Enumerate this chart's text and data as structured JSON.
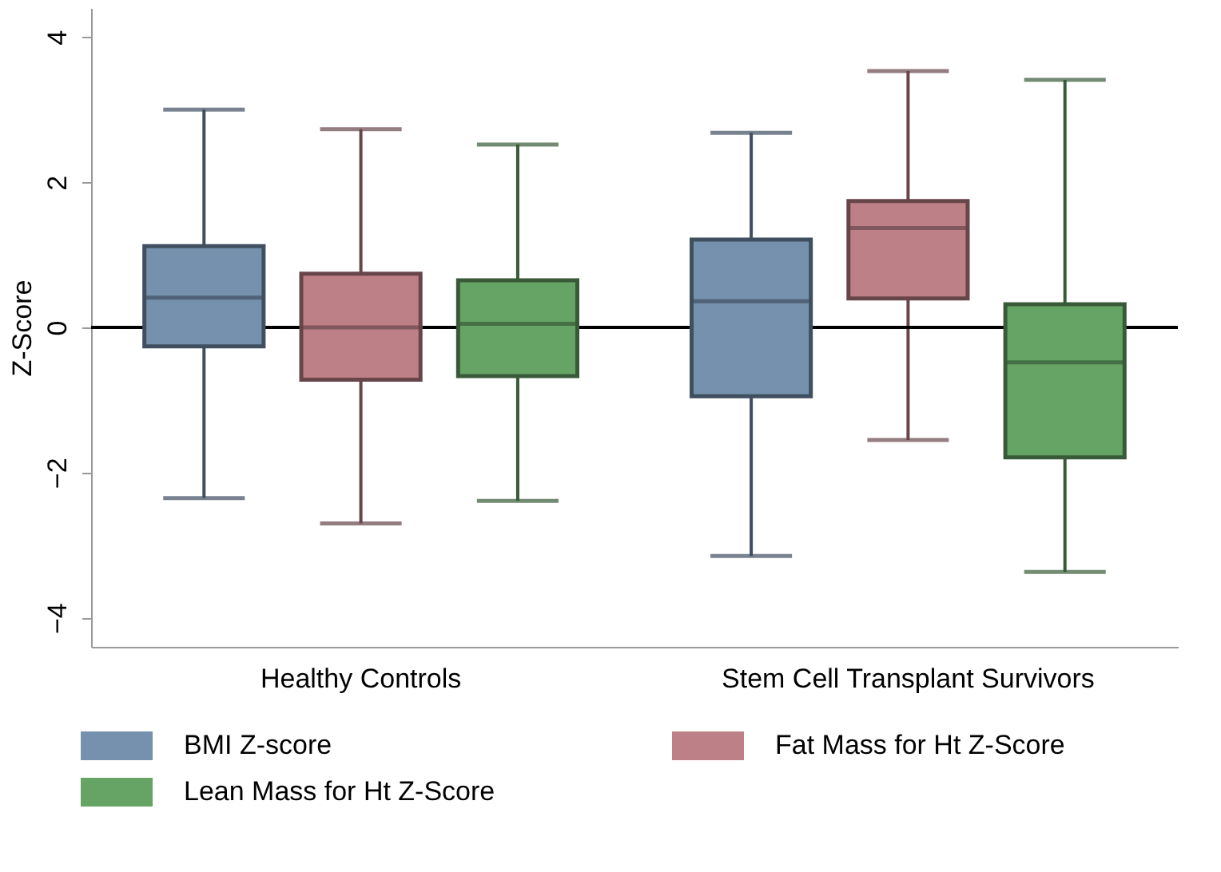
{
  "chart_data": {
    "type": "box",
    "ylabel": "Z-Score",
    "categories": [
      "Healthy Controls",
      "Stem Cell Transplant Survivors"
    ],
    "series": [
      {
        "name": "BMI Z-score",
        "color": "#7591ad",
        "boxes": [
          {
            "low": -2.35,
            "q1": -0.26,
            "median": 0.41,
            "q3": 1.12,
            "high": 3.0
          },
          {
            "low": -3.15,
            "q1": -0.95,
            "median": 0.36,
            "q3": 1.21,
            "high": 2.68
          }
        ]
      },
      {
        "name": "Fat Mass for Ht Z-Score",
        "color": "#bd8087",
        "boxes": [
          {
            "low": -2.7,
            "q1": -0.72,
            "median": 0.0,
            "q3": 0.74,
            "high": 2.73
          },
          {
            "low": -1.55,
            "q1": 0.4,
            "median": 1.37,
            "q3": 1.74,
            "high": 3.53
          }
        ]
      },
      {
        "name": "Lean Mass for Ht Z-Score",
        "color": "#66a466",
        "boxes": [
          {
            "low": -2.39,
            "q1": -0.67,
            "median": 0.05,
            "q3": 0.65,
            "high": 2.52
          },
          {
            "low": -3.37,
            "q1": -1.79,
            "median": -0.48,
            "q3": 0.32,
            "high": 3.41
          }
        ]
      }
    ],
    "ylim": [
      -4.4,
      4.4
    ],
    "yticks": [
      -4,
      -2,
      0,
      2,
      4
    ],
    "ref_lines": [
      {
        "axis": "y",
        "value": 0,
        "color": "#000000"
      }
    ],
    "grid": false,
    "legend": "bottom"
  }
}
